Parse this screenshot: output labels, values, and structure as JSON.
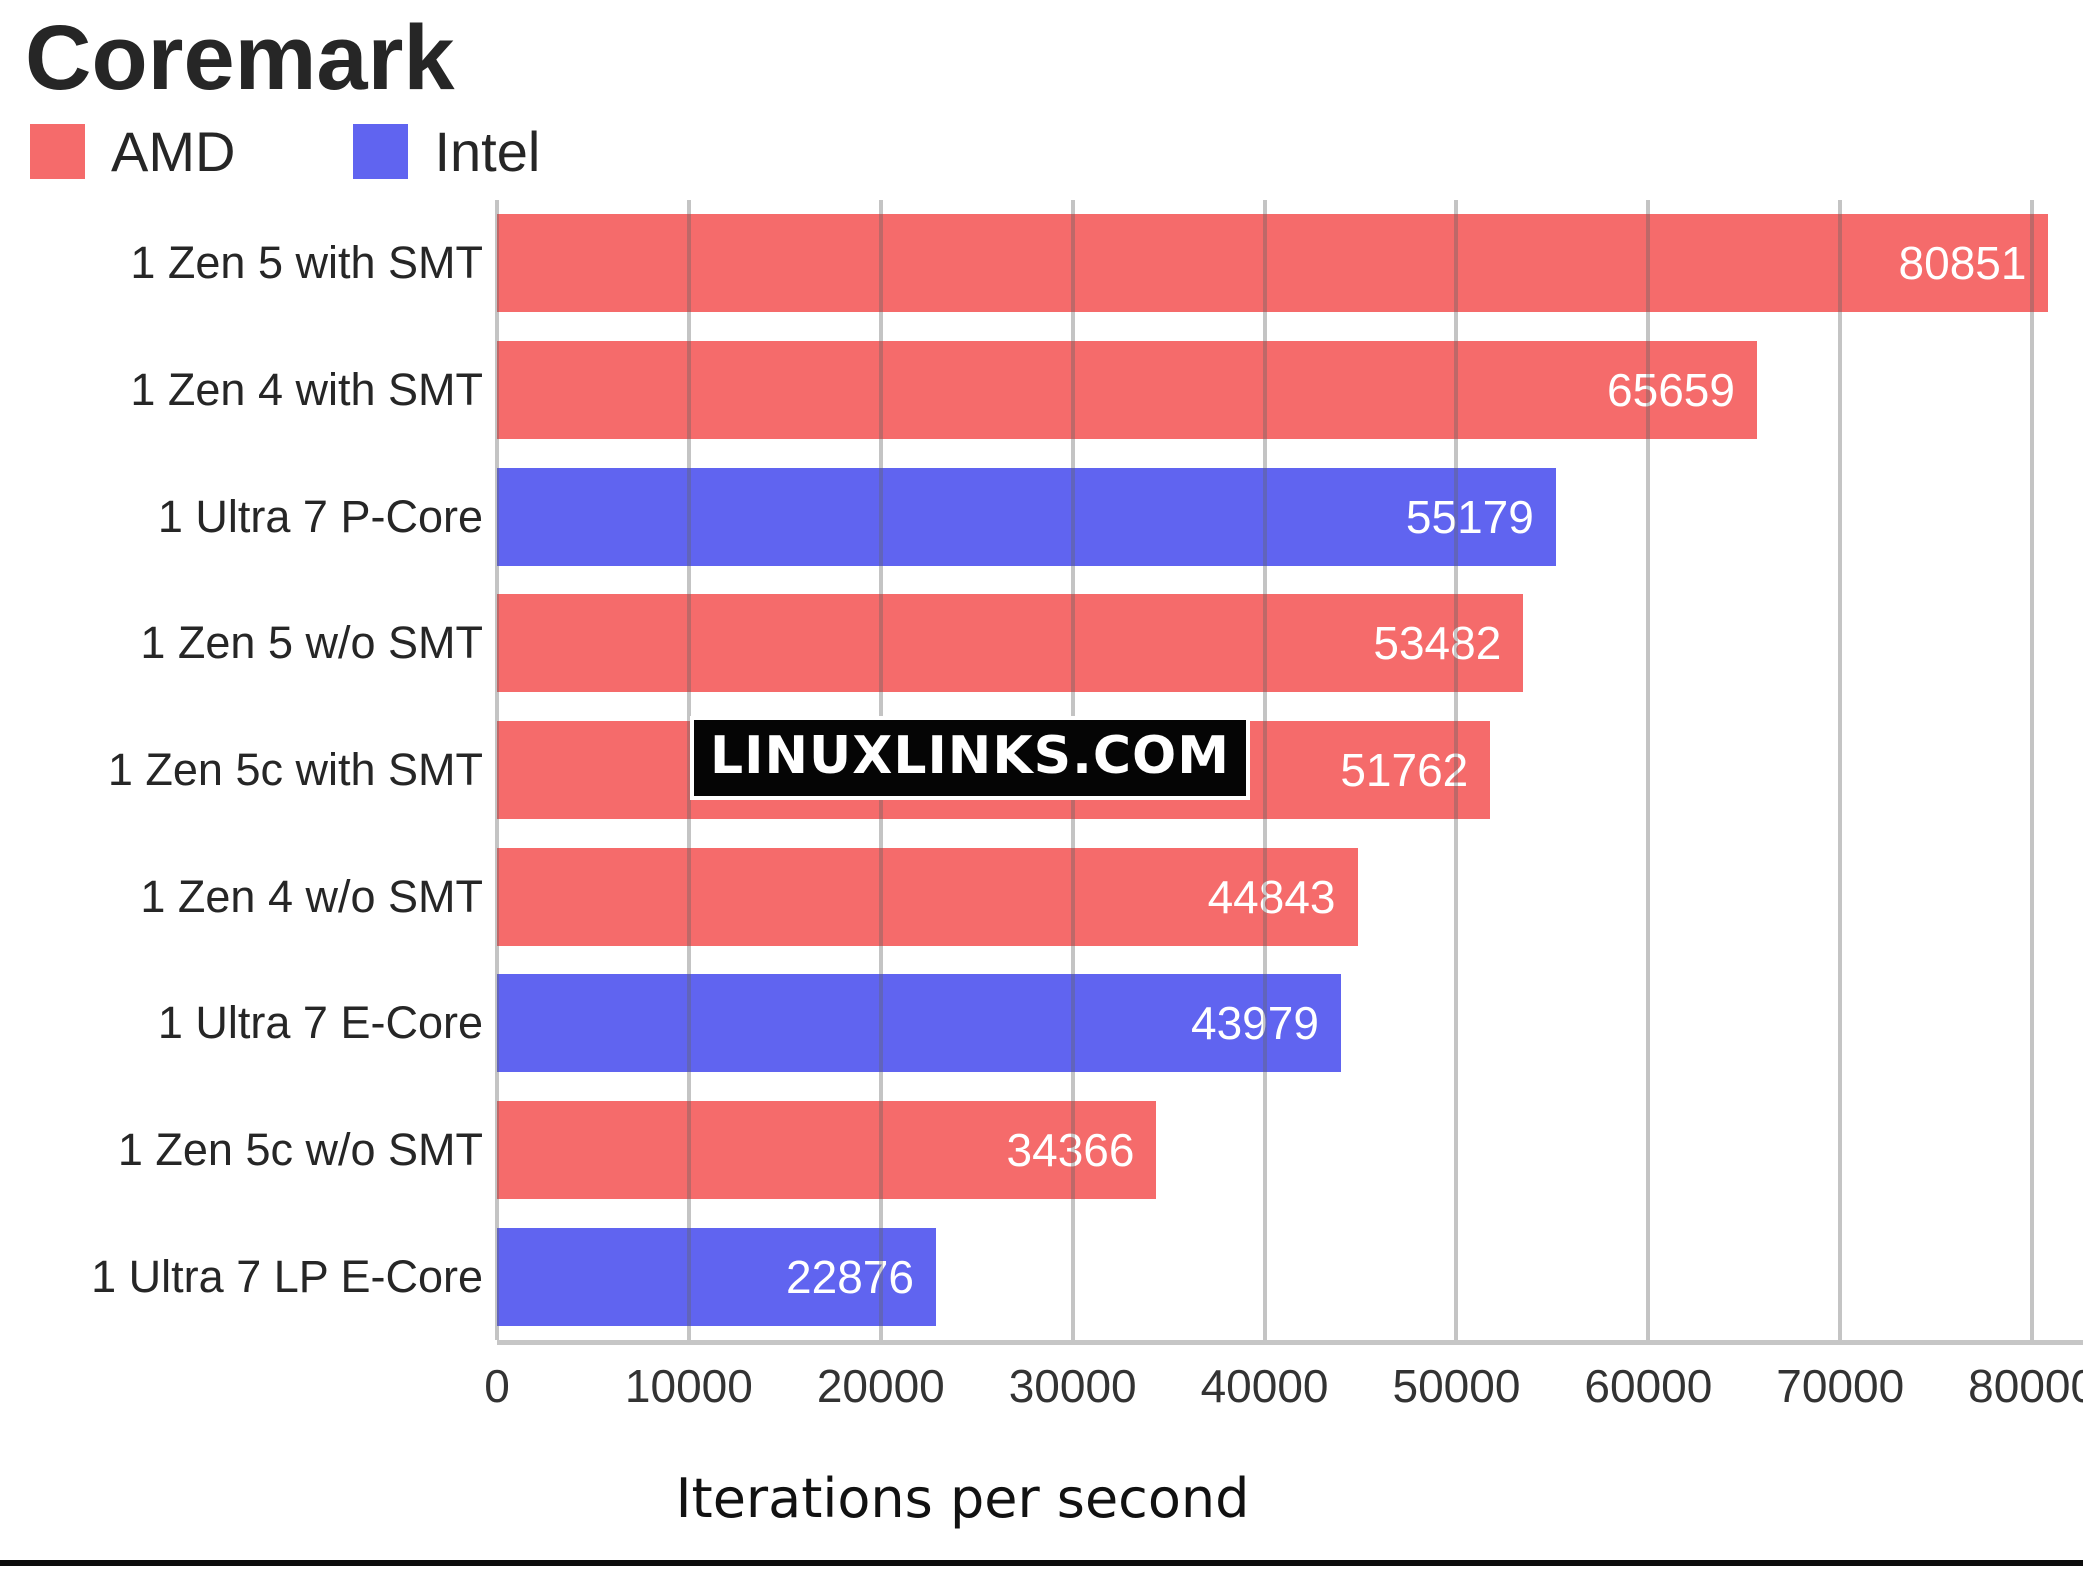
{
  "title": "Coremark",
  "watermark": "LINUXLINKS.COM",
  "xlabel": "Iterations per second",
  "legend": [
    {
      "label": "AMD",
      "color": "#f56b6b"
    },
    {
      "label": "Intel",
      "color": "#6064f0"
    }
  ],
  "colors": {
    "amd": "#f56b6b",
    "intel": "#6064f0",
    "gridline": "rgba(100,100,100,0.38)",
    "axis_line": "#c6c6c6",
    "value_text": "#ffffff"
  },
  "chart_data": {
    "type": "bar",
    "orientation": "horizontal",
    "title": "Coremark",
    "xlabel": "Iterations per second",
    "grid": true,
    "legend_position": "top-left",
    "xlim": [
      0,
      82650
    ],
    "x_ticks": [
      0,
      10000,
      20000,
      30000,
      40000,
      50000,
      60000,
      70000,
      80000
    ],
    "series_colors": {
      "AMD": "#f56b6b",
      "Intel": "#6064f0"
    },
    "bars": [
      {
        "label": "1 Zen 5 with SMT",
        "value": 80851,
        "series": "AMD"
      },
      {
        "label": "1 Zen 4 with SMT",
        "value": 65659,
        "series": "AMD"
      },
      {
        "label": "1 Ultra 7 P-Core",
        "value": 55179,
        "series": "Intel"
      },
      {
        "label": "1 Zen 5 w/o SMT",
        "value": 53482,
        "series": "AMD"
      },
      {
        "label": "1 Zen 5c with SMT",
        "value": 51762,
        "series": "AMD"
      },
      {
        "label": "1 Zen 4 w/o SMT",
        "value": 44843,
        "series": "AMD"
      },
      {
        "label": "1 Ultra 7 E-Core",
        "value": 43979,
        "series": "Intel"
      },
      {
        "label": "1 Zen 5c w/o SMT",
        "value": 34366,
        "series": "AMD"
      },
      {
        "label": "1 Ultra 7 LP E-Core",
        "value": 22876,
        "series": "Intel"
      }
    ]
  }
}
